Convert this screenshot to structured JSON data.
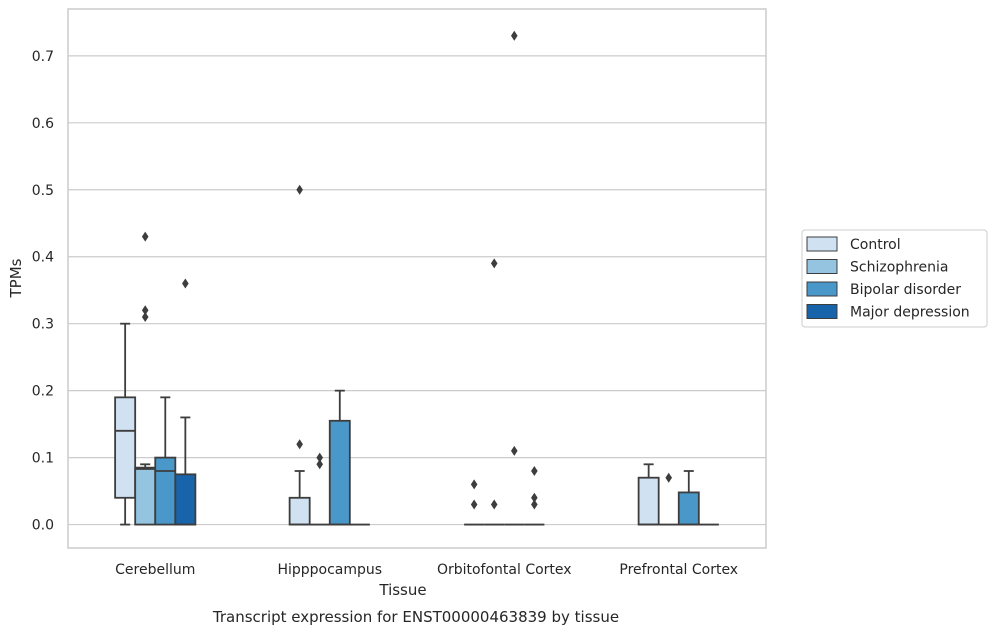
{
  "chart_data": {
    "type": "box",
    "title": "",
    "xlabel": "Tissue",
    "ylabel": "TPMs",
    "caption": "Transcript expression for ENST00000463839 by tissue",
    "ylim": [
      -0.035,
      0.77
    ],
    "yticks": [
      0.0,
      0.1,
      0.2,
      0.3,
      0.4,
      0.5,
      0.6,
      0.7
    ],
    "ytick_labels": [
      "0.0",
      "0.1",
      "0.2",
      "0.3",
      "0.4",
      "0.5",
      "0.6",
      "0.7"
    ],
    "grid": "horizontal",
    "legend_position": "right",
    "categories": [
      "Cerebellum",
      "Hipppocampus",
      "Orbitofontal Cortex",
      "Prefrontal Cortex"
    ],
    "series": [
      {
        "name": "Control",
        "color": "#d0e1f2",
        "boxes": [
          {
            "whislo": 0.0,
            "q1": 0.04,
            "med": 0.14,
            "q3": 0.19,
            "whishi": 0.3,
            "fliers": []
          },
          {
            "whislo": 0.0,
            "q1": 0.0,
            "med": 0.0,
            "q3": 0.04,
            "whishi": 0.08,
            "fliers": [
              0.12,
              0.5
            ]
          },
          {
            "whislo": 0.0,
            "q1": 0.0,
            "med": 0.0,
            "q3": 0.0,
            "whishi": 0.0,
            "fliers": [
              0.03,
              0.06
            ]
          },
          {
            "whislo": 0.0,
            "q1": 0.0,
            "med": 0.0,
            "q3": 0.07,
            "whishi": 0.09,
            "fliers": []
          }
        ]
      },
      {
        "name": "Schizophrenia",
        "color": "#94c4df",
        "boxes": [
          {
            "whislo": 0.0,
            "q1": 0.0,
            "med": 0.083,
            "q3": 0.085,
            "whishi": 0.09,
            "fliers": [
              0.31,
              0.32,
              0.43
            ]
          },
          {
            "whislo": 0.0,
            "q1": 0.0,
            "med": 0.0,
            "q3": 0.0,
            "whishi": 0.0,
            "fliers": [
              0.09,
              0.1
            ]
          },
          {
            "whislo": 0.0,
            "q1": 0.0,
            "med": 0.0,
            "q3": 0.0,
            "whishi": 0.0,
            "fliers": [
              0.03,
              0.39
            ]
          },
          {
            "whislo": 0.0,
            "q1": 0.0,
            "med": 0.0,
            "q3": 0.0,
            "whishi": 0.0,
            "fliers": [
              0.07
            ]
          }
        ]
      },
      {
        "name": "Bipolar disorder",
        "color": "#4a98c9",
        "boxes": [
          {
            "whislo": 0.0,
            "q1": 0.0,
            "med": 0.08,
            "q3": 0.1,
            "whishi": 0.19,
            "fliers": []
          },
          {
            "whislo": 0.0,
            "q1": 0.0,
            "med": 0.0,
            "q3": 0.155,
            "whishi": 0.2,
            "fliers": []
          },
          {
            "whislo": 0.0,
            "q1": 0.0,
            "med": 0.0,
            "q3": 0.0,
            "whishi": 0.0,
            "fliers": [
              0.11,
              0.73
            ]
          },
          {
            "whislo": 0.0,
            "q1": 0.0,
            "med": 0.0,
            "q3": 0.048,
            "whishi": 0.08,
            "fliers": []
          }
        ]
      },
      {
        "name": "Major depression",
        "color": "#1764ab",
        "boxes": [
          {
            "whislo": 0.0,
            "q1": 0.0,
            "med": 0.0,
            "q3": 0.075,
            "whishi": 0.16,
            "fliers": [
              0.36
            ]
          },
          {
            "whislo": 0.0,
            "q1": 0.0,
            "med": 0.0,
            "q3": 0.0,
            "whishi": 0.0,
            "fliers": []
          },
          {
            "whislo": 0.0,
            "q1": 0.0,
            "med": 0.0,
            "q3": 0.0,
            "whishi": 0.0,
            "fliers": [
              0.03,
              0.04,
              0.08
            ]
          },
          {
            "whislo": 0.0,
            "q1": 0.0,
            "med": 0.0,
            "q3": 0.0,
            "whishi": 0.0,
            "fliers": []
          }
        ]
      }
    ]
  }
}
